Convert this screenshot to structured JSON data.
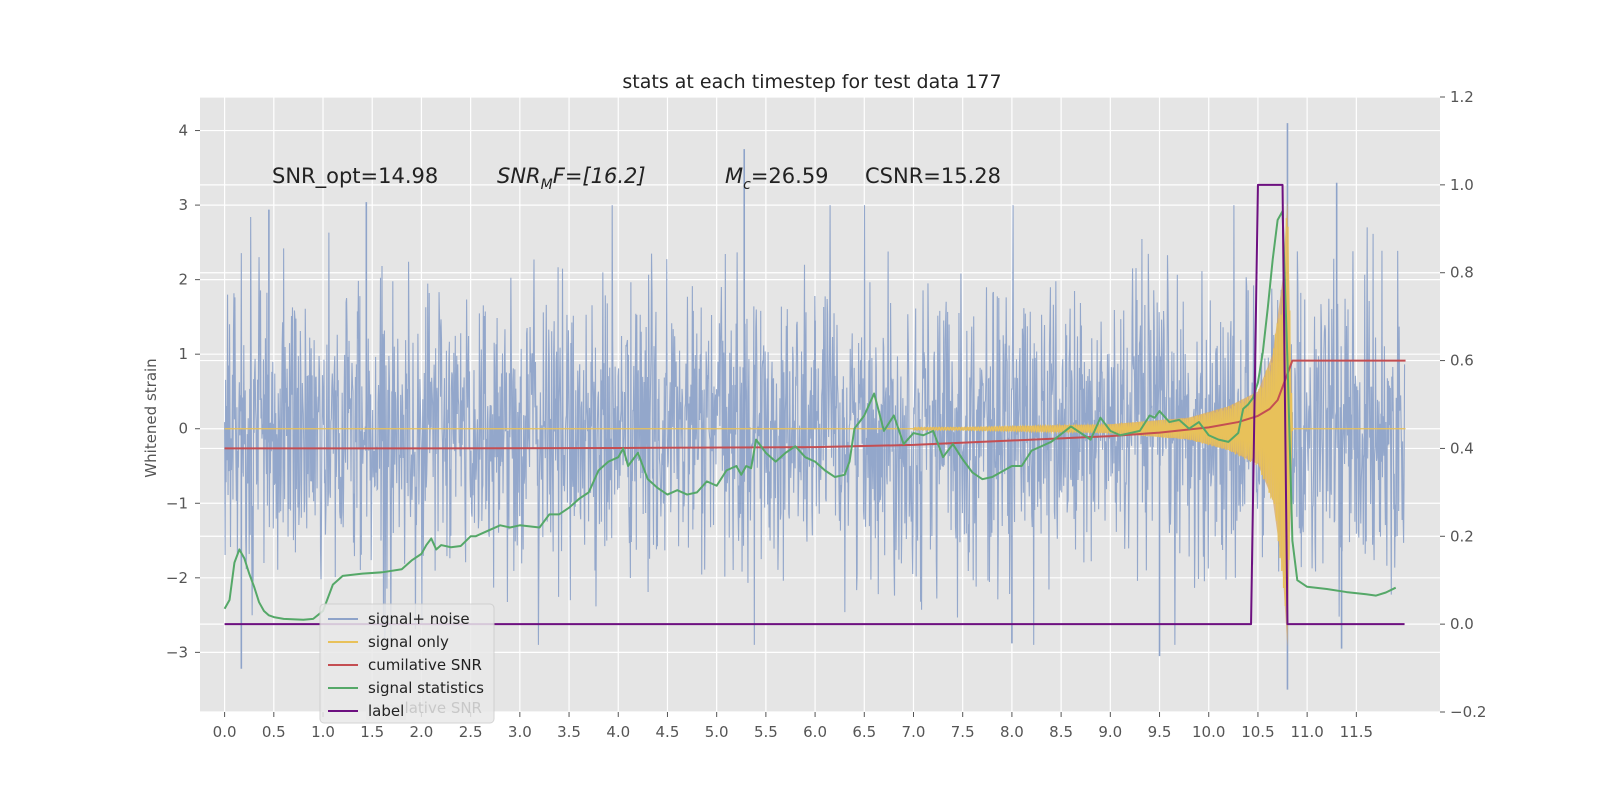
{
  "chart_data": {
    "type": "line",
    "title": "stats at each timestep for test data 177",
    "ylabel": "Whitened strain",
    "xlim": [
      -0.25,
      12.35
    ],
    "ylim": [
      -3.8,
      4.45
    ],
    "y2lim": [
      -0.2,
      1.2
    ],
    "x_ticks": [
      "0.0",
      "0.5",
      "1.0",
      "1.5",
      "2.0",
      "2.5",
      "3.0",
      "3.5",
      "4.0",
      "4.5",
      "5.0",
      "5.5",
      "6.0",
      "6.5",
      "7.0",
      "7.5",
      "8.0",
      "8.5",
      "9.0",
      "9.5",
      "10.0",
      "10.5",
      "11.0",
      "11.5"
    ],
    "y_ticks": [
      "4",
      "3",
      "2",
      "1",
      "0",
      "−1",
      "−2",
      "−3"
    ],
    "y2_ticks": [
      "1.2",
      "1.0",
      "0.8",
      "0.6",
      "0.4",
      "0.2",
      "0.0",
      "−0.2"
    ],
    "grid": true,
    "legend_position": "lower-left",
    "annotations": {
      "snr_opt": "SNR_opt=14.98",
      "snr_mf_main": "SNR",
      "snr_mf_sub": "M",
      "snr_mf_rest": "F=[16.2]",
      "mc_main": "M",
      "mc_sub": "c",
      "mc_rest": "=26.59",
      "csnr": "CSNR=15.28"
    },
    "series": [
      {
        "name": "signal+ noise",
        "color": "#8ea3c9",
        "axis": "left",
        "style": "dense-noise",
        "x_range": [
          0.0,
          11.99
        ],
        "envelope_typical": [
          -1.5,
          1.5
        ],
        "peaks": [
          {
            "x": 0.17,
            "y": -3.22
          },
          {
            "x": 0.45,
            "y": 2.94
          },
          {
            "x": 1.44,
            "y": 3.04
          },
          {
            "x": 5.28,
            "y": 3.75
          },
          {
            "x": 6.0,
            "y": 1.45
          },
          {
            "x": 8.0,
            "y": -2.88
          },
          {
            "x": 9.5,
            "y": -3.05
          },
          {
            "x": 10.8,
            "y": 4.1
          },
          {
            "x": 10.8,
            "y": -3.5
          },
          {
            "x": 11.3,
            "y": 3.3
          },
          {
            "x": 11.35,
            "y": -2.95
          }
        ]
      },
      {
        "name": "signal only",
        "color": "#e8c15a",
        "fill": "#d8a86a",
        "axis": "left",
        "style": "chirp",
        "x": [
          0.0,
          7.5,
          9.0,
          9.8,
          10.2,
          10.5,
          10.65,
          10.75,
          10.8,
          10.85,
          12.0
        ],
        "amplitude": [
          0.0,
          0.02,
          0.06,
          0.15,
          0.3,
          0.5,
          1.0,
          2.0,
          3.1,
          0.0,
          0.0
        ]
      },
      {
        "name": "cumilative SNR",
        "color": "#c44e52",
        "axis": "right",
        "x": [
          0.0,
          2.0,
          4.0,
          6.0,
          7.0,
          8.0,
          9.0,
          9.5,
          10.0,
          10.3,
          10.5,
          10.62,
          10.7,
          10.75,
          10.8,
          10.85,
          11.0,
          12.0
        ],
        "y": [
          0.4,
          0.4,
          0.401,
          0.403,
          0.408,
          0.418,
          0.428,
          0.436,
          0.448,
          0.46,
          0.474,
          0.49,
          0.51,
          0.54,
          0.57,
          0.6,
          0.6,
          0.6
        ]
      },
      {
        "name": "signal statistics",
        "color": "#55a868",
        "axis": "right",
        "x": [
          0.0,
          0.05,
          0.1,
          0.15,
          0.2,
          0.25,
          0.3,
          0.35,
          0.4,
          0.45,
          0.5,
          0.6,
          0.8,
          0.9,
          1.0,
          1.1,
          1.2,
          1.4,
          1.6,
          1.8,
          1.9,
          2.0,
          2.05,
          2.1,
          2.15,
          2.2,
          2.3,
          2.4,
          2.5,
          2.55,
          2.6,
          2.7,
          2.8,
          2.9,
          3.0,
          3.2,
          3.3,
          3.4,
          3.5,
          3.6,
          3.7,
          3.8,
          3.85,
          3.9,
          4.0,
          4.05,
          4.1,
          4.2,
          4.3,
          4.4,
          4.5,
          4.6,
          4.7,
          4.8,
          4.9,
          5.0,
          5.1,
          5.2,
          5.25,
          5.3,
          5.35,
          5.4,
          5.5,
          5.6,
          5.7,
          5.8,
          5.9,
          6.0,
          6.1,
          6.2,
          6.3,
          6.35,
          6.4,
          6.5,
          6.6,
          6.7,
          6.8,
          6.9,
          7.0,
          7.1,
          7.2,
          7.3,
          7.4,
          7.5,
          7.6,
          7.7,
          7.8,
          8.0,
          8.1,
          8.2,
          8.3,
          8.4,
          8.6,
          8.8,
          8.9,
          9.0,
          9.1,
          9.2,
          9.3,
          9.4,
          9.45,
          9.5,
          9.6,
          9.7,
          9.8,
          9.9,
          10.0,
          10.1,
          10.2,
          10.3,
          10.35,
          10.4,
          10.45,
          10.5,
          10.55,
          10.6,
          10.65,
          10.7,
          10.75,
          10.8,
          10.85,
          10.9,
          11.0,
          11.2,
          11.4,
          11.6,
          11.7,
          11.8,
          11.9
        ],
        "y": [
          0.035,
          0.055,
          0.14,
          0.17,
          0.15,
          0.115,
          0.085,
          0.05,
          0.03,
          0.02,
          0.016,
          0.012,
          0.01,
          0.012,
          0.03,
          0.09,
          0.11,
          0.115,
          0.118,
          0.125,
          0.145,
          0.16,
          0.18,
          0.195,
          0.17,
          0.18,
          0.175,
          0.178,
          0.2,
          0.2,
          0.205,
          0.215,
          0.225,
          0.22,
          0.225,
          0.22,
          0.25,
          0.25,
          0.265,
          0.285,
          0.3,
          0.35,
          0.36,
          0.37,
          0.38,
          0.4,
          0.36,
          0.39,
          0.33,
          0.31,
          0.295,
          0.305,
          0.295,
          0.3,
          0.325,
          0.315,
          0.35,
          0.36,
          0.34,
          0.36,
          0.355,
          0.42,
          0.39,
          0.37,
          0.39,
          0.405,
          0.38,
          0.37,
          0.35,
          0.335,
          0.34,
          0.37,
          0.445,
          0.475,
          0.525,
          0.44,
          0.475,
          0.41,
          0.435,
          0.43,
          0.44,
          0.38,
          0.41,
          0.375,
          0.345,
          0.33,
          0.335,
          0.36,
          0.36,
          0.395,
          0.405,
          0.415,
          0.45,
          0.42,
          0.47,
          0.44,
          0.43,
          0.435,
          0.44,
          0.475,
          0.47,
          0.485,
          0.46,
          0.465,
          0.445,
          0.46,
          0.43,
          0.42,
          0.415,
          0.435,
          0.49,
          0.5,
          0.515,
          0.55,
          0.62,
          0.72,
          0.83,
          0.92,
          0.94,
          0.6,
          0.19,
          0.1,
          0.085,
          0.08,
          0.073,
          0.068,
          0.065,
          0.072,
          0.083
        ]
      },
      {
        "name": "label",
        "color": "#6d1080",
        "axis": "right",
        "x": [
          0.0,
          10.43,
          10.5,
          10.75,
          10.8,
          11.99
        ],
        "y": [
          0.0,
          0.0,
          1.0,
          1.0,
          0.0,
          0.0
        ]
      }
    ],
    "legend_ghost_text": "cumilative SNR"
  }
}
